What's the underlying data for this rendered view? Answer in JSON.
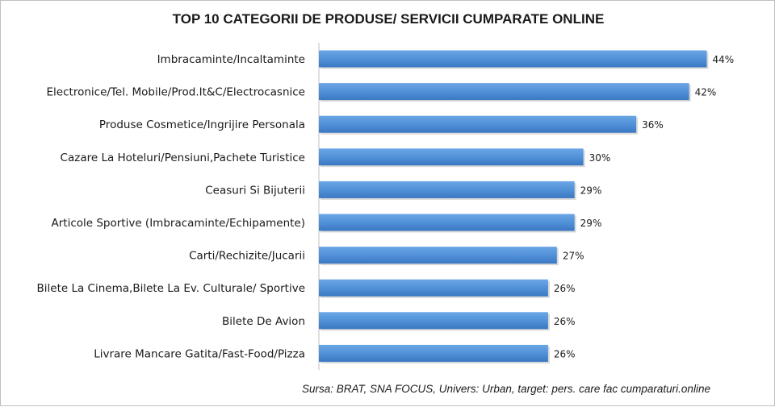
{
  "chart_data": {
    "type": "bar",
    "orientation": "horizontal",
    "title": "TOP 10 CATEGORII DE PRODUSE/ SERVICII CUMPARATE ONLINE",
    "categories": [
      "Imbracaminte/Incaltaminte",
      "Electronice/Tel. Mobile/Prod.It&C/Electrocasnice",
      "Produse Cosmetice/Ingrijire Personala",
      "Cazare La Hoteluri/Pensiuni,Pachete Turistice",
      "Ceasuri Si Bijuterii",
      "Articole Sportive (Imbracaminte/Echipamente)",
      "Carti/Rechizite/Jucarii",
      "Bilete La Cinema,Bilete La Ev. Culturale/ Sportive",
      "Bilete De Avion",
      "Livrare Mancare Gatita/Fast-Food/Pizza"
    ],
    "values": [
      44,
      42,
      36,
      30,
      29,
      29,
      27,
      26,
      26,
      26
    ],
    "value_labels": [
      "44%",
      "42%",
      "36%",
      "30%",
      "29%",
      "29%",
      "27%",
      "26%",
      "26%",
      "26%"
    ],
    "unit": "%",
    "xlim": [
      0,
      50
    ],
    "grid": false,
    "legend": "none",
    "bar_color": "#4f8fd6",
    "source_note": "Sursa: BRAT, SNA FOCUS, Univers: Urban, target: pers. care fac cumparaturi.online"
  }
}
